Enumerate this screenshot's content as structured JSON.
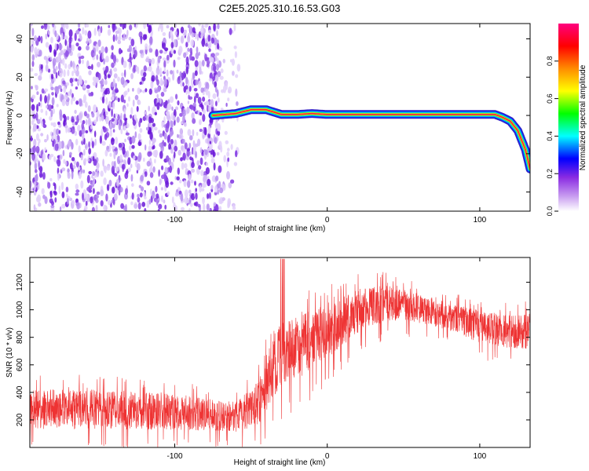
{
  "title": "C2E5.2025.310.16.53.G03",
  "chart_data": [
    {
      "type": "heatmap",
      "xlabel": "Height of straight line (km)",
      "ylabel": "Frequency (Hz)",
      "xlim": [
        -195,
        133
      ],
      "ylim": [
        -50,
        48
      ],
      "xticks": [
        -100,
        0,
        100
      ],
      "yticks": [
        -40,
        -20,
        0,
        20,
        40
      ],
      "colorbar": {
        "label": "Normalized spectral amplitude",
        "range": [
          0,
          1
        ],
        "ticks": [
          "0.0",
          "0.2",
          "0.4",
          "0.6",
          "0.8"
        ],
        "colors": [
          "#ffffff",
          "#8a2be2",
          "#0000ff",
          "#00ffff",
          "#00ff00",
          "#ffff00",
          "#ff8c00",
          "#ff0000",
          "#ff007f"
        ]
      },
      "noise_region": {
        "x": [
          -195,
          -58
        ],
        "amplitude": 0.15
      },
      "ridge": {
        "x": [
          -75,
          -60,
          -50,
          -40,
          -30,
          -20,
          -10,
          0,
          20,
          50,
          80,
          100,
          110,
          115,
          120,
          125,
          130,
          133
        ],
        "y": [
          0,
          1,
          3,
          3,
          0.5,
          0.5,
          1,
          0.5,
          0.5,
          0.5,
          0.5,
          0.5,
          0.5,
          -1,
          -3,
          -8,
          -18,
          -28
        ]
      }
    },
    {
      "type": "line",
      "xlabel": "Height of straight line (km)",
      "ylabel": "SNR (10 * v/v)",
      "xlim": [
        -195,
        133
      ],
      "ylim": [
        0,
        1380
      ],
      "xticks": [
        -100,
        0,
        100
      ],
      "yticks": [
        200,
        400,
        600,
        800,
        1000,
        1200
      ],
      "color": "#ee3333",
      "envelope": {
        "x": [
          -195,
          -150,
          -100,
          -60,
          -45,
          -40,
          -35,
          -30,
          -20,
          -10,
          0,
          20,
          40,
          60,
          80,
          100,
          110,
          120,
          133
        ],
        "low": [
          60,
          60,
          60,
          60,
          80,
          150,
          250,
          320,
          380,
          450,
          550,
          750,
          860,
          850,
          800,
          700,
          680,
          660,
          650
        ],
        "high": [
          420,
          420,
          390,
          330,
          480,
          700,
          850,
          900,
          950,
          1000,
          1050,
          1150,
          1180,
          1120,
          1050,
          1000,
          980,
          960,
          980
        ]
      }
    }
  ]
}
